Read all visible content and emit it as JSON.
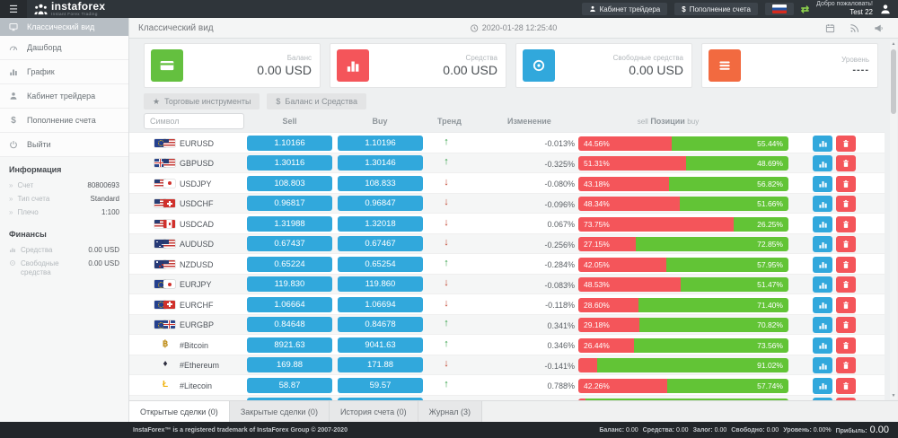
{
  "topbar": {
    "logo_title": "instaforex",
    "logo_subtitle": "Instant Forex Trading",
    "trader_cabinet_label": "Кабинет трейдера",
    "deposit_dollar": "$",
    "deposit_label": "Пополнение счета",
    "welcome_line1": "Добро пожаловать!",
    "welcome_line2": "Test 22"
  },
  "header": {
    "title": "Классический вид",
    "datetime": "2020-01-28 12:25:40"
  },
  "sidebar": {
    "items": [
      {
        "label": "Классический вид",
        "icon": "classic-view-icon",
        "active": true
      },
      {
        "label": "Дашборд",
        "icon": "dashboard-icon",
        "active": false
      },
      {
        "label": "График",
        "icon": "chart-icon",
        "active": false
      },
      {
        "label": "Кабинет трейдера",
        "icon": "user-icon",
        "active": false
      },
      {
        "label": "Пополнение счета",
        "icon": "dollar-icon",
        "active": false
      },
      {
        "label": "Выйти",
        "icon": "power-icon",
        "active": false
      }
    ],
    "info_section": {
      "title": "Информация",
      "rows": [
        {
          "label": "Счет",
          "value": "80800693"
        },
        {
          "label": "Тип счета",
          "value": "Standard"
        },
        {
          "label": "Плечо",
          "value": "1:100"
        }
      ]
    },
    "finance_section": {
      "title": "Финансы",
      "rows": [
        {
          "label": "Средства",
          "value": "0.00 USD",
          "icon": "mini-chart-icon"
        },
        {
          "label": "Свободные средства",
          "value": "0.00 USD",
          "icon": "mini-circle-icon"
        }
      ]
    }
  },
  "cards": [
    {
      "label": "Баланс",
      "value": "0.00 USD",
      "icon": "credit-card-icon",
      "color": "#64c03f"
    },
    {
      "label": "Средства",
      "value": "0.00 USD",
      "icon": "bar-chart-icon",
      "color": "#f4555a"
    },
    {
      "label": "Свободные средства",
      "value": "0.00 USD",
      "icon": "circle-lens-icon",
      "color": "#31a8dc"
    },
    {
      "label": "Уровень",
      "value": "----",
      "icon": "menu-lines-icon",
      "color": "#f26a40"
    }
  ],
  "filters": [
    {
      "label": "Торговые инструменты",
      "icon": "star-icon"
    },
    {
      "label": "Баланс и Средства",
      "icon": "dollar-icon"
    }
  ],
  "table": {
    "symbol_placeholder": "Символ",
    "headers": {
      "sell": "Sell",
      "buy": "Buy",
      "trend": "Тренд",
      "change": "Изменение",
      "positions_sell": "sell",
      "positions": "Позиции",
      "positions_buy": "buy"
    },
    "rows": [
      {
        "symbol": "EURUSD",
        "flags": [
          "eu",
          "us"
        ],
        "sell": "1.10166",
        "buy": "1.10196",
        "trend": "up",
        "change": "-0.013%",
        "sell_pct": 44.56,
        "buy_pct": 55.44
      },
      {
        "symbol": "GBPUSD",
        "flags": [
          "gb",
          "us"
        ],
        "sell": "1.30116",
        "buy": "1.30146",
        "trend": "up",
        "change": "-0.325%",
        "sell_pct": 51.31,
        "buy_pct": 48.69
      },
      {
        "symbol": "USDJPY",
        "flags": [
          "us",
          "jp"
        ],
        "sell": "108.803",
        "buy": "108.833",
        "trend": "down",
        "change": "-0.080%",
        "sell_pct": 43.18,
        "buy_pct": 56.82
      },
      {
        "symbol": "USDCHF",
        "flags": [
          "us",
          "ch"
        ],
        "sell": "0.96817",
        "buy": "0.96847",
        "trend": "down",
        "change": "-0.096%",
        "sell_pct": 48.34,
        "buy_pct": 51.66
      },
      {
        "symbol": "USDCAD",
        "flags": [
          "us",
          "ca"
        ],
        "sell": "1.31988",
        "buy": "1.32018",
        "trend": "down",
        "change": "0.067%",
        "sell_pct": 73.75,
        "buy_pct": 26.25
      },
      {
        "symbol": "AUDUSD",
        "flags": [
          "au",
          "us"
        ],
        "sell": "0.67437",
        "buy": "0.67467",
        "trend": "down",
        "change": "-0.256%",
        "sell_pct": 27.15,
        "buy_pct": 72.85
      },
      {
        "symbol": "NZDUSD",
        "flags": [
          "nz",
          "us"
        ],
        "sell": "0.65224",
        "buy": "0.65254",
        "trend": "up",
        "change": "-0.284%",
        "sell_pct": 42.05,
        "buy_pct": 57.95
      },
      {
        "symbol": "EURJPY",
        "flags": [
          "eu",
          "jp"
        ],
        "sell": "119.830",
        "buy": "119.860",
        "trend": "down",
        "change": "-0.083%",
        "sell_pct": 48.53,
        "buy_pct": 51.47
      },
      {
        "symbol": "EURCHF",
        "flags": [
          "eu",
          "ch"
        ],
        "sell": "1.06664",
        "buy": "1.06694",
        "trend": "down",
        "change": "-0.118%",
        "sell_pct": 28.6,
        "buy_pct": 71.4
      },
      {
        "symbol": "EURGBP",
        "flags": [
          "eu",
          "gb"
        ],
        "sell": "0.84648",
        "buy": "0.84678",
        "trend": "up",
        "change": "0.341%",
        "sell_pct": 29.18,
        "buy_pct": 70.82
      },
      {
        "symbol": "#Bitcoin",
        "crypto": "btc",
        "crypto_char": "฿",
        "sell": "8921.63",
        "buy": "9041.63",
        "trend": "up",
        "change": "0.346%",
        "sell_pct": 26.44,
        "buy_pct": 73.56
      },
      {
        "symbol": "#Ethereum",
        "crypto": "eth",
        "crypto_char": "♦",
        "sell": "169.88",
        "buy": "171.88",
        "trend": "down",
        "change": "-0.141%",
        "sell_pct": 8.98,
        "buy_pct": 91.02,
        "hide_sell_pct": true
      },
      {
        "symbol": "#Litecoin",
        "crypto": "ltc",
        "crypto_char": "Ł",
        "sell": "58.87",
        "buy": "59.57",
        "trend": "up",
        "change": "0.788%",
        "sell_pct": 42.26,
        "buy_pct": 57.74
      },
      {
        "symbol": "",
        "crypto": "part",
        "crypto_char": "▪",
        "sell": "",
        "buy": "",
        "trend": "up",
        "change": "",
        "sell_pct": 3.5,
        "buy_pct": 96.5,
        "hide_sell_pct": true,
        "hide_buy_pct": true,
        "partial": true
      }
    ]
  },
  "tabs": [
    {
      "label": "Открытые сделки (0)",
      "active": true
    },
    {
      "label": "Закрытые сделки (0)",
      "active": false
    },
    {
      "label": "История счета (0)",
      "active": false
    },
    {
      "label": "Журнал (3)",
      "active": false
    }
  ],
  "footer": {
    "copyright": "InstaForex™ is a registered trademark of InstaForex Group © 2007-2020",
    "stats": [
      {
        "label": "Баланс:",
        "value": "0.00"
      },
      {
        "label": "Средства:",
        "value": "0.00"
      },
      {
        "label": "Залог:",
        "value": "0.00"
      },
      {
        "label": "Свободно:",
        "value": "0.00"
      },
      {
        "label": "Уровень:",
        "value": "0.00%"
      },
      {
        "label": "Прибыль:",
        "value": "0.00",
        "big": true
      }
    ]
  }
}
